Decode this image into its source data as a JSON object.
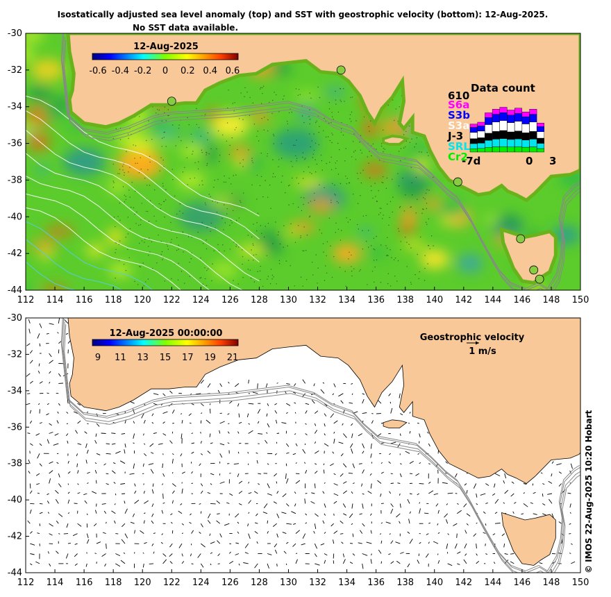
{
  "header": {
    "title_line1": "Isostatically adjusted sea level anomaly (top) and SST with geostrophic velocity (bottom): 12-Aug-2025.",
    "title_line2": "No SST data available."
  },
  "axes": {
    "lon_ticks": [
      "112",
      "114",
      "116",
      "118",
      "120",
      "122",
      "124",
      "126",
      "128",
      "130",
      "132",
      "134",
      "136",
      "138",
      "140",
      "142",
      "144",
      "146",
      "148",
      "150"
    ],
    "lat_ticks": [
      "-30",
      "-32",
      "-34",
      "-36",
      "-38",
      "-40",
      "-42",
      "-44"
    ],
    "lon_range": [
      112,
      150
    ],
    "lat_range": [
      -44,
      -30
    ]
  },
  "top_panel": {
    "colorbar_title": "12-Aug-2025",
    "colorbar_ticks": [
      "-0.6",
      "-0.4",
      "-0.2",
      "0",
      "0.2",
      "0.4",
      "0.6"
    ],
    "colorbar_range": [
      -0.6,
      0.6
    ]
  },
  "bottom_panel": {
    "colorbar_title": "12-Aug-2025 00:00:00",
    "colorbar_ticks": [
      "9",
      "11",
      "13",
      "15",
      "17",
      "19",
      "21"
    ],
    "colorbar_range": [
      9,
      21
    ],
    "velocity_legend_title": "Geostrophic velocity",
    "velocity_legend_scale": "1 m/s"
  },
  "data_count": {
    "title": "Data count",
    "max_label": "610",
    "x_start": "-7d",
    "x_zero": "0",
    "x_end": "3",
    "missions": [
      {
        "label": "S6a",
        "color": "#ff00ff"
      },
      {
        "label": "S3b",
        "color": "#0000ff"
      },
      {
        "label": "S3a",
        "color": "#ffffff"
      },
      {
        "label": "J-3",
        "color": "#000000"
      },
      {
        "label": "SRL",
        "color": "#00e5ee"
      },
      {
        "label": "Cr2",
        "color": "#00ee00"
      }
    ],
    "daily_totals": [
      300,
      320,
      420,
      460,
      480,
      450,
      470,
      430,
      460,
      310
    ]
  },
  "credit": "© IMOS 22-Aug-2025 10:20 Hobart",
  "colors": {
    "land": "#f8c898",
    "coast_line": "#000000",
    "bathymetry": "#888888",
    "ssl_zero": "#66cc22"
  }
}
